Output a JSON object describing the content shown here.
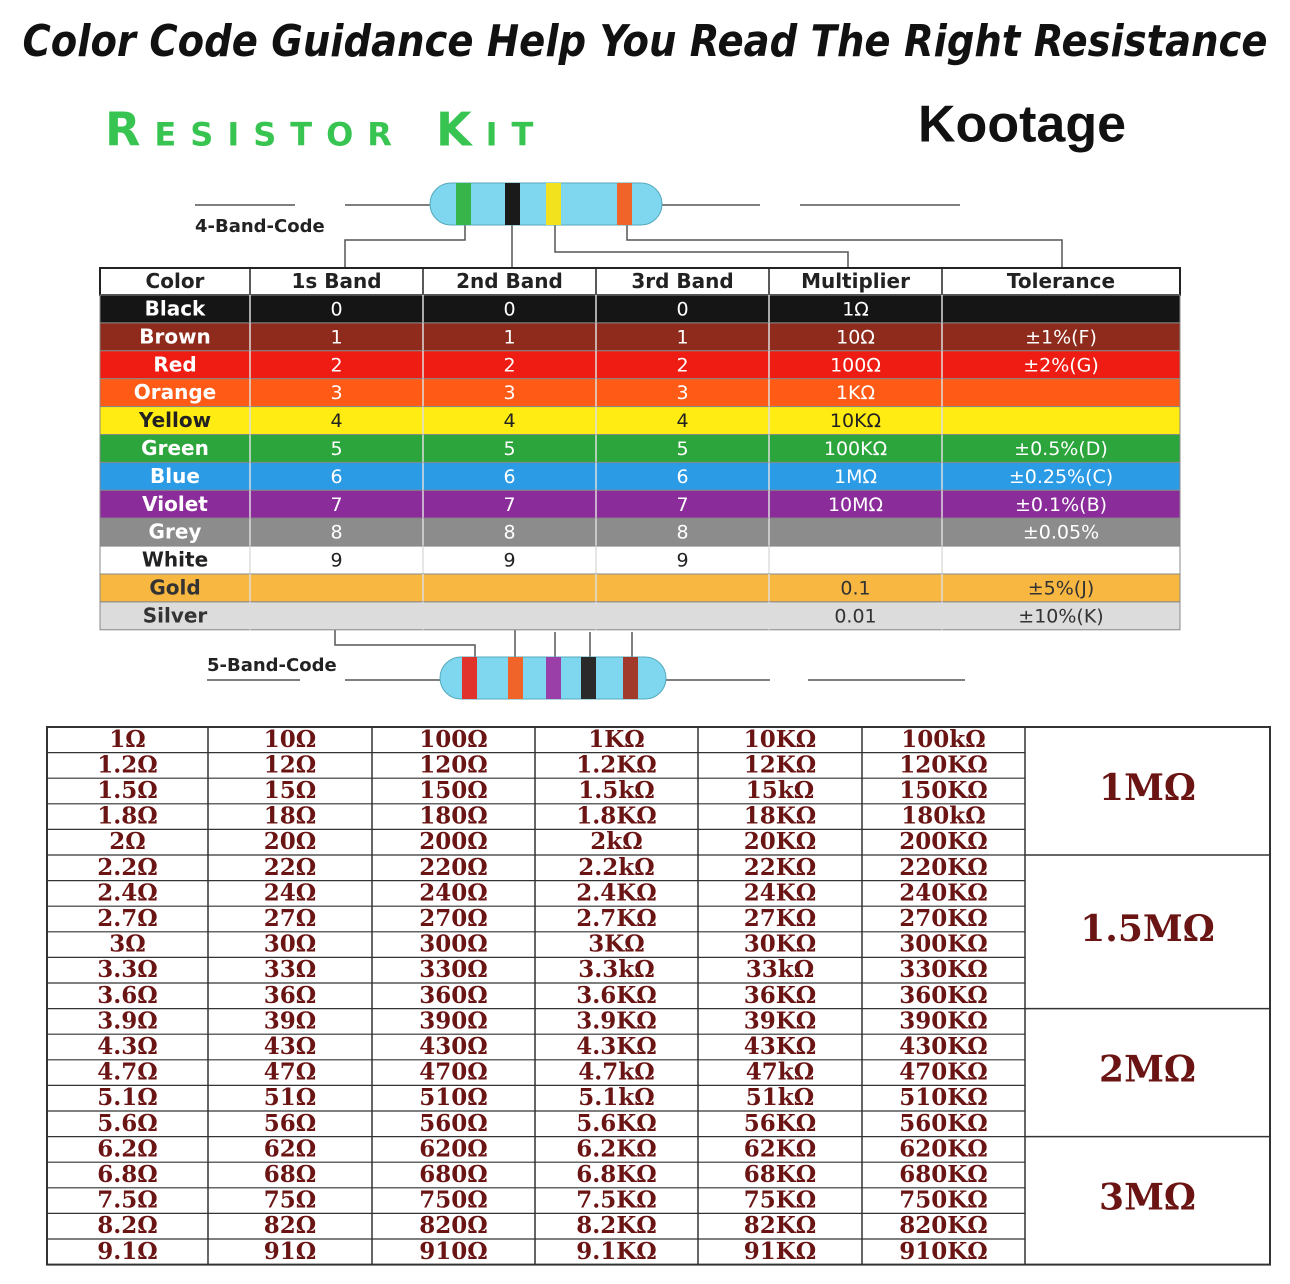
{
  "header": {
    "title": "Color Code Guidance Help You Read The Right Resistance",
    "kit": "Resistor Kit",
    "brand": "Kootage"
  },
  "labels": {
    "four_band": "4-Band-Code",
    "five_band": "5-Band-Code"
  },
  "color_table": {
    "columns": [
      "Color",
      "1s Band",
      "2nd Band",
      "3rd Band",
      "Multiplier",
      "Tolerance"
    ],
    "rows": [
      [
        "Black",
        "0",
        "0",
        "0",
        "1Ω",
        null
      ],
      [
        "Brown",
        "1",
        "1",
        "1",
        "10Ω",
        "±1%(F)"
      ],
      [
        "Red",
        "2",
        "2",
        "2",
        "100Ω",
        "±2%(G)"
      ],
      [
        "Orange",
        "3",
        "3",
        "3",
        "1KΩ",
        null
      ],
      [
        "Yellow",
        "4",
        "4",
        "4",
        "10KΩ",
        null
      ],
      [
        "Green",
        "5",
        "5",
        "5",
        "100KΩ",
        "±0.5%(D)"
      ],
      [
        "Blue",
        "6",
        "6",
        "6",
        "1MΩ",
        "±0.25%(C)"
      ],
      [
        "Violet",
        "7",
        "7",
        "7",
        "10MΩ",
        "±0.1%(B)"
      ],
      [
        "Grey",
        "8",
        "8",
        "8",
        null,
        "±0.05%"
      ],
      [
        "White",
        "9",
        "9",
        "9",
        null,
        null
      ],
      [
        "Gold",
        null,
        null,
        null,
        "0.1",
        "±5%(J)"
      ],
      [
        "Silver",
        null,
        null,
        null,
        "0.01",
        "±10%(K)"
      ]
    ],
    "row_colors": [
      "#151515",
      "#8e2b1c",
      "#ee1c12",
      "#ff5b16",
      "#ffec12",
      "#2ca63c",
      "#2b9be6",
      "#8b2c9b",
      "#8c8c8c",
      "#ffffff",
      "#f7b741",
      "#dcdcdc"
    ],
    "text_colors": [
      "#ffffff",
      "#ffffff",
      "#ffffff",
      "#ffffff",
      "#222222",
      "#ffffff",
      "#ffffff",
      "#ffffff",
      "#ffffff",
      "#222222",
      "#333333",
      "#333333"
    ]
  },
  "values_table": {
    "rows": [
      [
        "1Ω",
        "10Ω",
        "100Ω",
        "1KΩ",
        "10KΩ",
        "100kΩ"
      ],
      [
        "1.2Ω",
        "12Ω",
        "120Ω",
        "1.2KΩ",
        "12KΩ",
        "120KΩ"
      ],
      [
        "1.5Ω",
        "15Ω",
        "150Ω",
        "1.5kΩ",
        "15kΩ",
        "150KΩ"
      ],
      [
        "1.8Ω",
        "18Ω",
        "180Ω",
        "1.8KΩ",
        "18KΩ",
        "180kΩ"
      ],
      [
        "2Ω",
        "20Ω",
        "200Ω",
        "2kΩ",
        "20KΩ",
        "200KΩ"
      ],
      [
        "2.2Ω",
        "22Ω",
        "220Ω",
        "2.2kΩ",
        "22KΩ",
        "220KΩ"
      ],
      [
        "2.4Ω",
        "24Ω",
        "240Ω",
        "2.4KΩ",
        "24KΩ",
        "240KΩ"
      ],
      [
        "2.7Ω",
        "27Ω",
        "270Ω",
        "2.7KΩ",
        "27KΩ",
        "270KΩ"
      ],
      [
        "3Ω",
        "30Ω",
        "300Ω",
        "3KΩ",
        "30KΩ",
        "300KΩ"
      ],
      [
        "3.3Ω",
        "33Ω",
        "330Ω",
        "3.3kΩ",
        "33kΩ",
        "330KΩ"
      ],
      [
        "3.6Ω",
        "36Ω",
        "360Ω",
        "3.6KΩ",
        "36KΩ",
        "360KΩ"
      ],
      [
        "3.9Ω",
        "39Ω",
        "390Ω",
        "3.9KΩ",
        "39KΩ",
        "390KΩ"
      ],
      [
        "4.3Ω",
        "43Ω",
        "430Ω",
        "4.3KΩ",
        "43KΩ",
        "430KΩ"
      ],
      [
        "4.7Ω",
        "47Ω",
        "470Ω",
        "4.7kΩ",
        "47kΩ",
        "470KΩ"
      ],
      [
        "5.1Ω",
        "51Ω",
        "510Ω",
        "5.1kΩ",
        "51kΩ",
        "510KΩ"
      ],
      [
        "5.6Ω",
        "56Ω",
        "560Ω",
        "5.6KΩ",
        "56KΩ",
        "560KΩ"
      ],
      [
        "6.2Ω",
        "62Ω",
        "620Ω",
        "6.2KΩ",
        "62KΩ",
        "620KΩ"
      ],
      [
        "6.8Ω",
        "68Ω",
        "680Ω",
        "6.8KΩ",
        "68KΩ",
        "680KΩ"
      ],
      [
        "7.5Ω",
        "75Ω",
        "750Ω",
        "7.5KΩ",
        "75KΩ",
        "750KΩ"
      ],
      [
        "8.2Ω",
        "82Ω",
        "820Ω",
        "8.2KΩ",
        "82KΩ",
        "820KΩ"
      ],
      [
        "9.1Ω",
        "91Ω",
        "910Ω",
        "9.1KΩ",
        "91KΩ",
        "910KΩ"
      ]
    ],
    "groups": [
      "1MΩ",
      "1.5MΩ",
      "2MΩ",
      "3MΩ"
    ]
  }
}
